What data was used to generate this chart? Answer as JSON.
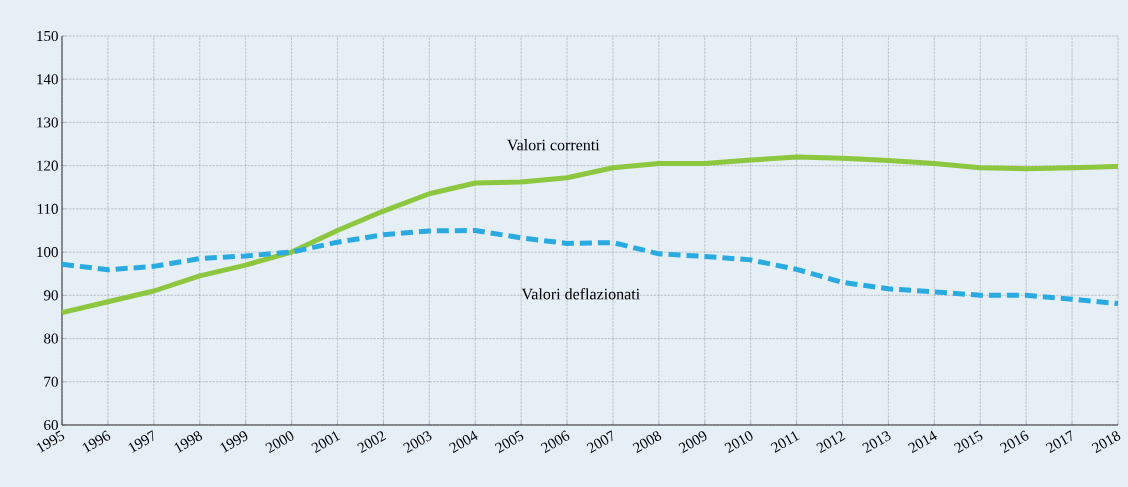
{
  "chart_data": {
    "type": "line",
    "x": [
      1995,
      1996,
      1997,
      1998,
      1999,
      2000,
      2001,
      2002,
      2003,
      2004,
      2005,
      2006,
      2007,
      2008,
      2009,
      2010,
      2011,
      2012,
      2013,
      2014,
      2015,
      2016,
      2017,
      2018
    ],
    "series": [
      {
        "name": "Valori correnti",
        "color": "#8dc63f",
        "line_style": "solid",
        "values": [
          86,
          88.5,
          91,
          94.5,
          97,
          100,
          105,
          109.5,
          113.5,
          116,
          116.2,
          117.2,
          119.5,
          120.5,
          120.5,
          121.3,
          122,
          121.7,
          121.2,
          120.5,
          119.5,
          119.3,
          119.5,
          119.8
        ]
      },
      {
        "name": "Valori deflazionati",
        "color": "#29abe2",
        "line_style": "dashed",
        "values": [
          97.2,
          95.9,
          96.7,
          98.5,
          99.1,
          100,
          102.3,
          104,
          104.9,
          105,
          103.3,
          102,
          102.2,
          99.6,
          99,
          98.2,
          96,
          93,
          91.5,
          90.8,
          90,
          90,
          89.1,
          88.1
        ]
      }
    ],
    "xlim": [
      1995,
      2018
    ],
    "xticks": [
      1995,
      1996,
      1997,
      1998,
      1999,
      2000,
      2001,
      2002,
      2003,
      2004,
      2005,
      2006,
      2007,
      2008,
      2009,
      2010,
      2011,
      2012,
      2013,
      2014,
      2015,
      2016,
      2017,
      2018
    ],
    "ylim": [
      60,
      150
    ],
    "yticks": [
      60,
      70,
      80,
      90,
      100,
      110,
      120,
      130,
      140,
      150
    ],
    "grid": true,
    "legend": false,
    "marker": "none"
  }
}
